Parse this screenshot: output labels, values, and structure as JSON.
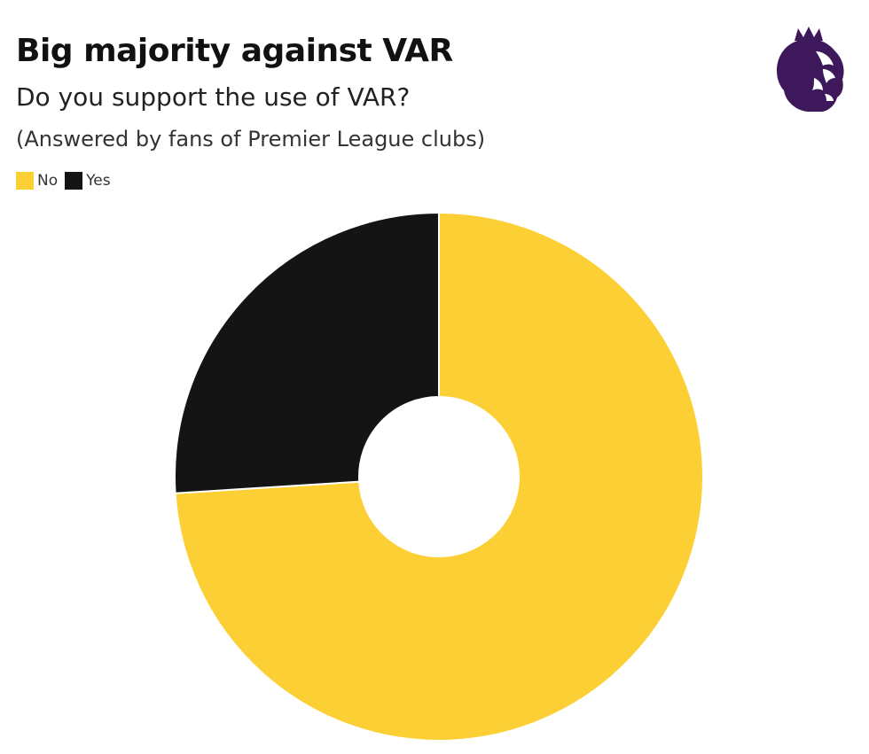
{
  "chart_data": {
    "type": "pie",
    "style": "donut",
    "title": "Big majority against VAR",
    "subtitle": "Do you support the use of VAR?",
    "note": "(Answered by fans of Premier League clubs)",
    "legend_position": "top-left",
    "slices": [
      {
        "label": "No",
        "value": 74,
        "color": "#FCD034"
      },
      {
        "label": "Yes",
        "value": 26,
        "color": "#141414"
      }
    ]
  },
  "logo": {
    "icon": "premier-league-lion-icon",
    "color": "#3D195B"
  }
}
